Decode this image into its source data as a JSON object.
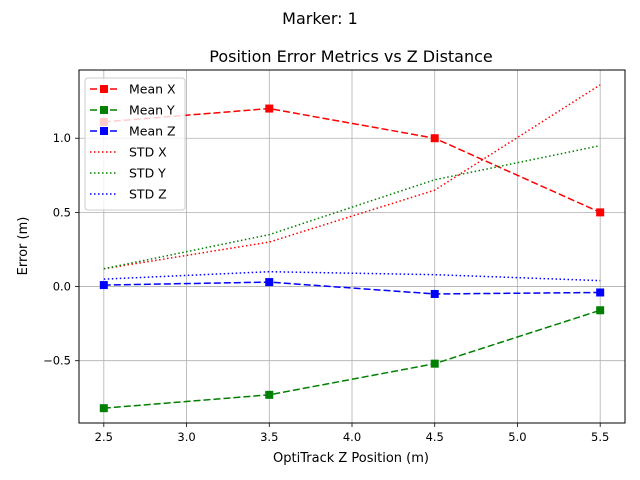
{
  "figure": {
    "suptitle": "Marker: 1"
  },
  "chart_data": {
    "type": "line",
    "title": "Position Error Metrics vs Z Distance",
    "xlabel": "OptiTrack Z Position (m)",
    "ylabel": "Error (m)",
    "x": [
      2.5,
      3.5,
      4.5,
      5.5
    ],
    "xlim": [
      2.35,
      5.65
    ],
    "ylim": [
      -0.92,
      1.46
    ],
    "xticks": [
      2.5,
      3.0,
      3.5,
      4.0,
      4.5,
      5.0,
      5.5
    ],
    "xtick_labels": [
      "2.5",
      "3.0",
      "3.5",
      "4.0",
      "4.5",
      "5.0",
      "5.5"
    ],
    "yticks": [
      -0.5,
      0.0,
      0.5,
      1.0
    ],
    "ytick_labels": [
      "−0.5",
      "0.0",
      "0.5",
      "1.0"
    ],
    "grid": true,
    "legend_position": "top-left",
    "series": [
      {
        "name": "Mean X",
        "values": [
          1.11,
          1.2,
          1.0,
          0.5
        ],
        "color": "#ff0000",
        "linestyle": "dashed",
        "marker": "square"
      },
      {
        "name": "Mean Y",
        "values": [
          -0.82,
          -0.73,
          -0.52,
          -0.16
        ],
        "color": "#008000",
        "linestyle": "dashed",
        "marker": "square"
      },
      {
        "name": "Mean Z",
        "values": [
          0.01,
          0.03,
          -0.05,
          -0.04
        ],
        "color": "#0000ff",
        "linestyle": "dashed",
        "marker": "square"
      },
      {
        "name": "STD X",
        "values": [
          0.12,
          0.3,
          0.65,
          1.36
        ],
        "color": "#ff0000",
        "linestyle": "dotted",
        "marker": "none"
      },
      {
        "name": "STD Y",
        "values": [
          0.12,
          0.35,
          0.72,
          0.95
        ],
        "color": "#008000",
        "linestyle": "dotted",
        "marker": "none"
      },
      {
        "name": "STD Z",
        "values": [
          0.05,
          0.1,
          0.08,
          0.04
        ],
        "color": "#0000ff",
        "linestyle": "dotted",
        "marker": "none"
      }
    ]
  }
}
